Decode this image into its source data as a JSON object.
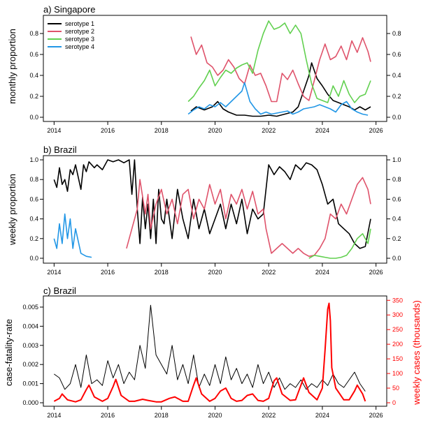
{
  "colors": {
    "s1": "#000000",
    "s2": "#DF536B",
    "s3": "#61D04F",
    "s4": "#2297E6",
    "cases": "#FF0000"
  },
  "chart_data": [
    {
      "id": "a",
      "type": "line",
      "title": "a) Singapore",
      "ylabel": "monthly proportion",
      "xlim": [
        2013.6,
        2026.4
      ],
      "ylim": [
        0,
        0.92
      ],
      "xticks": [
        2014,
        2016,
        2018,
        2020,
        2022,
        2024,
        2026
      ],
      "xtick_labels": [
        "2014",
        "2016",
        "2018",
        "2020",
        "2022",
        "2024",
        "2026"
      ],
      "yticks": [
        0,
        0.2,
        0.4,
        0.6,
        0.8
      ],
      "ytick_labels": [
        "0.0",
        "0.2",
        "0.4",
        "0.6",
        "0.8"
      ],
      "legend": [
        "serotype 1",
        "serotype 2",
        "serotype 3",
        "serotype 4"
      ],
      "series": [
        {
          "name": "serotype 1",
          "color": "#000000",
          "x": [
            2019.1,
            2019.3,
            2019.6,
            2019.9,
            2020.1,
            2020.3,
            2020.5,
            2020.8,
            2021.1,
            2021.4,
            2021.7,
            2022.0,
            2022.3,
            2022.6,
            2022.9,
            2023.1,
            2023.3,
            2023.5,
            2023.6,
            2023.8,
            2024.0,
            2024.2,
            2024.4,
            2024.6,
            2024.8,
            2025.0,
            2025.2,
            2025.4,
            2025.6,
            2025.8
          ],
          "y": [
            0.06,
            0.1,
            0.07,
            0.1,
            0.15,
            0.08,
            0.05,
            0.02,
            0.02,
            0.01,
            0.01,
            0.02,
            0.01,
            0.03,
            0.05,
            0.1,
            0.25,
            0.4,
            0.52,
            0.37,
            0.3,
            0.22,
            0.16,
            0.14,
            0.12,
            0.1,
            0.07,
            0.1,
            0.07,
            0.1
          ]
        },
        {
          "name": "serotype 2",
          "color": "#DF536B",
          "x": [
            2019.1,
            2019.3,
            2019.5,
            2019.7,
            2019.9,
            2020.1,
            2020.3,
            2020.5,
            2020.7,
            2020.9,
            2021.1,
            2021.3,
            2021.5,
            2021.7,
            2021.9,
            2022.1,
            2022.3,
            2022.5,
            2022.7,
            2022.9,
            2023.1,
            2023.3,
            2023.5,
            2023.7,
            2023.9,
            2024.1,
            2024.3,
            2024.5,
            2024.7,
            2024.9,
            2025.1,
            2025.3,
            2025.5,
            2025.7,
            2025.8
          ],
          "y": [
            0.77,
            0.6,
            0.69,
            0.52,
            0.48,
            0.4,
            0.45,
            0.55,
            0.48,
            0.37,
            0.32,
            0.5,
            0.4,
            0.42,
            0.3,
            0.15,
            0.15,
            0.42,
            0.36,
            0.45,
            0.32,
            0.2,
            0.16,
            0.35,
            0.55,
            0.7,
            0.55,
            0.58,
            0.68,
            0.55,
            0.73,
            0.62,
            0.76,
            0.63,
            0.53
          ]
        },
        {
          "name": "serotype 3",
          "color": "#61D04F",
          "x": [
            2019.0,
            2019.2,
            2019.4,
            2019.6,
            2019.8,
            2020.0,
            2020.2,
            2020.4,
            2020.6,
            2020.8,
            2021.0,
            2021.2,
            2021.4,
            2021.6,
            2021.8,
            2022.0,
            2022.2,
            2022.4,
            2022.6,
            2022.8,
            2023.0,
            2023.2,
            2023.4,
            2023.6,
            2023.8,
            2024.0,
            2024.2,
            2024.4,
            2024.6,
            2024.8,
            2025.0,
            2025.2,
            2025.4,
            2025.6,
            2025.8
          ],
          "y": [
            0.15,
            0.2,
            0.28,
            0.35,
            0.45,
            0.3,
            0.38,
            0.45,
            0.42,
            0.47,
            0.5,
            0.52,
            0.42,
            0.64,
            0.8,
            0.92,
            0.84,
            0.86,
            0.9,
            0.8,
            0.88,
            0.8,
            0.55,
            0.32,
            0.18,
            0.16,
            0.14,
            0.3,
            0.2,
            0.35,
            0.22,
            0.14,
            0.2,
            0.22,
            0.35
          ]
        },
        {
          "name": "serotype 4",
          "color": "#2297E6",
          "x": [
            2019.0,
            2019.2,
            2019.4,
            2019.6,
            2019.8,
            2020.0,
            2020.2,
            2020.4,
            2020.6,
            2020.8,
            2021.0,
            2021.1,
            2021.3,
            2021.5,
            2021.7,
            2021.9,
            2022.1,
            2022.3,
            2022.5,
            2022.7,
            2022.9,
            2023.1,
            2023.3,
            2023.5,
            2023.7,
            2023.9,
            2024.1,
            2024.3,
            2024.5,
            2024.7,
            2024.9,
            2025.1,
            2025.3,
            2025.5,
            2025.7
          ],
          "y": [
            0.03,
            0.07,
            0.1,
            0.08,
            0.12,
            0.1,
            0.14,
            0.1,
            0.15,
            0.2,
            0.25,
            0.33,
            0.15,
            0.08,
            0.03,
            0.05,
            0.03,
            0.04,
            0.05,
            0.06,
            0.03,
            0.05,
            0.08,
            0.09,
            0.1,
            0.12,
            0.1,
            0.08,
            0.05,
            0.12,
            0.15,
            0.08,
            0.05,
            0.03,
            0.02
          ]
        }
      ]
    },
    {
      "id": "b",
      "type": "line",
      "title": "b) Brazil",
      "ylabel": "weekly proportion",
      "xlim": [
        2013.6,
        2026.4
      ],
      "ylim": [
        0,
        1.0
      ],
      "xticks": [
        2014,
        2016,
        2018,
        2020,
        2022,
        2024,
        2026
      ],
      "xtick_labels": [
        "2014",
        "2016",
        "2018",
        "2020",
        "2022",
        "2024",
        "2026"
      ],
      "yticks": [
        0,
        0.2,
        0.4,
        0.6,
        0.8,
        1.0
      ],
      "ytick_labels": [
        "0.0",
        "0.2",
        "0.4",
        "0.6",
        "0.8",
        "1.0"
      ],
      "series": [
        {
          "name": "serotype 1",
          "color": "#000000",
          "x": [
            2014.0,
            2014.1,
            2014.2,
            2014.3,
            2014.4,
            2014.5,
            2014.6,
            2014.7,
            2014.8,
            2015.0,
            2015.1,
            2015.2,
            2015.3,
            2015.5,
            2015.6,
            2015.8,
            2016.0,
            2016.2,
            2016.4,
            2016.6,
            2016.8,
            2016.9,
            2017.0,
            2017.1,
            2017.2,
            2017.3,
            2017.4,
            2017.5,
            2017.6,
            2017.7,
            2017.8,
            2017.9,
            2018.0,
            2018.1,
            2018.2,
            2018.4,
            2018.6,
            2018.8,
            2019.0,
            2019.2,
            2019.4,
            2019.6,
            2019.8,
            2020.0,
            2020.2,
            2020.4,
            2020.6,
            2020.8,
            2021.0,
            2021.2,
            2021.4,
            2021.6,
            2021.8,
            2022.0,
            2022.1,
            2022.2,
            2022.4,
            2022.6,
            2022.8,
            2023.0,
            2023.2,
            2023.4,
            2023.6,
            2023.8,
            2024.0,
            2024.2,
            2024.4,
            2024.6,
            2024.8,
            2025.0,
            2025.2,
            2025.4,
            2025.6,
            2025.8
          ],
          "y": [
            0.8,
            0.72,
            0.92,
            0.75,
            0.8,
            0.68,
            0.9,
            0.85,
            0.95,
            0.7,
            0.95,
            0.88,
            0.98,
            0.92,
            0.95,
            0.9,
            1.0,
            0.98,
            1.0,
            0.97,
            1.0,
            0.65,
            1.0,
            0.5,
            0.15,
            0.62,
            0.3,
            0.55,
            0.2,
            0.6,
            0.15,
            0.7,
            0.4,
            0.35,
            0.6,
            0.2,
            0.7,
            0.4,
            0.2,
            0.6,
            0.3,
            0.5,
            0.25,
            0.4,
            0.55,
            0.3,
            0.55,
            0.35,
            0.6,
            0.25,
            0.5,
            0.4,
            0.45,
            0.95,
            0.9,
            0.85,
            0.93,
            0.88,
            0.8,
            0.95,
            0.9,
            0.97,
            0.95,
            0.9,
            0.75,
            0.55,
            0.6,
            0.35,
            0.3,
            0.25,
            0.15,
            0.1,
            0.12,
            0.4
          ]
        },
        {
          "name": "serotype 2",
          "color": "#DF536B",
          "x": [
            2016.7,
            2016.9,
            2017.1,
            2017.2,
            2017.4,
            2017.5,
            2017.6,
            2017.8,
            2018.0,
            2018.2,
            2018.4,
            2018.6,
            2018.8,
            2019.0,
            2019.2,
            2019.4,
            2019.6,
            2019.8,
            2020.0,
            2020.2,
            2020.4,
            2020.6,
            2020.8,
            2021.0,
            2021.2,
            2021.4,
            2021.6,
            2021.8,
            2021.9,
            2022.1,
            2022.3,
            2022.5,
            2022.7,
            2022.9,
            2023.1,
            2023.3,
            2023.5,
            2023.7,
            2023.9,
            2024.1,
            2024.3,
            2024.5,
            2024.7,
            2024.9,
            2025.1,
            2025.3,
            2025.5,
            2025.7,
            2025.8
          ],
          "y": [
            0.1,
            0.3,
            0.5,
            0.8,
            0.45,
            0.65,
            0.3,
            0.55,
            0.7,
            0.45,
            0.6,
            0.35,
            0.65,
            0.7,
            0.4,
            0.6,
            0.5,
            0.75,
            0.55,
            0.7,
            0.4,
            0.65,
            0.55,
            0.7,
            0.5,
            0.68,
            0.45,
            0.5,
            0.3,
            0.05,
            0.1,
            0.15,
            0.1,
            0.05,
            0.1,
            0.05,
            0.02,
            0.03,
            0.1,
            0.2,
            0.45,
            0.4,
            0.55,
            0.45,
            0.6,
            0.75,
            0.82,
            0.7,
            0.55
          ]
        },
        {
          "name": "serotype 3",
          "color": "#61D04F",
          "x": [
            2023.5,
            2023.7,
            2023.9,
            2024.1,
            2024.3,
            2024.5,
            2024.7,
            2024.9,
            2025.1,
            2025.3,
            2025.5,
            2025.7,
            2025.8
          ],
          "y": [
            0.0,
            0.03,
            0.02,
            0.01,
            0.0,
            0.0,
            0.01,
            0.03,
            0.1,
            0.2,
            0.25,
            0.15,
            0.3
          ]
        },
        {
          "name": "serotype 4",
          "color": "#2297E6",
          "x": [
            2014.0,
            2014.1,
            2014.2,
            2014.3,
            2014.4,
            2014.5,
            2014.6,
            2014.7,
            2014.8,
            2015.0,
            2015.2,
            2015.4
          ],
          "y": [
            0.2,
            0.1,
            0.35,
            0.15,
            0.45,
            0.2,
            0.4,
            0.1,
            0.3,
            0.05,
            0.02,
            0.01
          ]
        }
      ]
    },
    {
      "id": "c",
      "type": "line",
      "title": "c) Brazil",
      "ylabel": "case-fatality-rate",
      "y2label": "weekly cases (thousands)",
      "xlim": [
        2013.6,
        2026.4
      ],
      "ylim": [
        0,
        0.0054
      ],
      "y2lim": [
        0,
        353
      ],
      "xticks": [
        2014,
        2016,
        2018,
        2020,
        2022,
        2024,
        2026
      ],
      "xtick_labels": [
        "2014",
        "2016",
        "2018",
        "2020",
        "2022",
        "2024",
        "2026"
      ],
      "yticks": [
        0,
        0.001,
        0.002,
        0.003,
        0.004,
        0.005
      ],
      "ytick_labels": [
        "0.000",
        "0.001",
        "0.002",
        "0.003",
        "0.004",
        "0.005"
      ],
      "y2ticks": [
        0,
        50,
        100,
        150,
        200,
        250,
        300,
        350
      ],
      "y2tick_labels": [
        "0",
        "50",
        "100",
        "150",
        "200",
        "250",
        "300",
        "350"
      ],
      "series": [
        {
          "name": "case-fatality-rate",
          "color": "#000000",
          "axis": "left",
          "x": [
            2014.0,
            2014.2,
            2014.4,
            2014.6,
            2014.8,
            2015.0,
            2015.2,
            2015.4,
            2015.6,
            2015.8,
            2016.0,
            2016.2,
            2016.4,
            2016.6,
            2016.8,
            2017.0,
            2017.2,
            2017.4,
            2017.6,
            2017.8,
            2018.0,
            2018.2,
            2018.4,
            2018.6,
            2018.8,
            2019.0,
            2019.2,
            2019.4,
            2019.6,
            2019.8,
            2020.0,
            2020.2,
            2020.4,
            2020.6,
            2020.8,
            2021.0,
            2021.2,
            2021.4,
            2021.6,
            2021.8,
            2022.0,
            2022.2,
            2022.4,
            2022.6,
            2022.8,
            2023.0,
            2023.2,
            2023.4,
            2023.6,
            2023.8,
            2024.0,
            2024.2,
            2024.4,
            2024.6,
            2024.8,
            2025.0,
            2025.2,
            2025.4,
            2025.6
          ],
          "y": [
            0.0015,
            0.0013,
            0.0007,
            0.001,
            0.002,
            0.0008,
            0.0025,
            0.001,
            0.0012,
            0.0009,
            0.0022,
            0.0013,
            0.002,
            0.001,
            0.0016,
            0.0012,
            0.003,
            0.0018,
            0.0051,
            0.0025,
            0.002,
            0.0015,
            0.003,
            0.0012,
            0.002,
            0.001,
            0.0025,
            0.0008,
            0.0015,
            0.0009,
            0.002,
            0.001,
            0.0024,
            0.0012,
            0.0018,
            0.001,
            0.0015,
            0.0008,
            0.002,
            0.001,
            0.0016,
            0.0008,
            0.0013,
            0.0007,
            0.001,
            0.0008,
            0.0012,
            0.0007,
            0.001,
            0.0008,
            0.0012,
            0.0009,
            0.0015,
            0.001,
            0.0008,
            0.0012,
            0.0016,
            0.001,
            0.0006
          ]
        },
        {
          "name": "weekly cases (thousands)",
          "color": "#FF0000",
          "axis": "right",
          "x": [
            2014.0,
            2014.2,
            2014.3,
            2014.5,
            2014.8,
            2015.0,
            2015.2,
            2015.3,
            2015.5,
            2015.8,
            2016.0,
            2016.2,
            2016.3,
            2016.5,
            2016.8,
            2017.0,
            2017.3,
            2017.5,
            2017.8,
            2018.0,
            2018.3,
            2018.5,
            2018.8,
            2019.0,
            2019.2,
            2019.3,
            2019.5,
            2019.8,
            2020.0,
            2020.2,
            2020.4,
            2020.6,
            2020.8,
            2021.0,
            2021.2,
            2021.4,
            2021.6,
            2021.8,
            2022.0,
            2022.2,
            2022.3,
            2022.5,
            2022.8,
            2023.0,
            2023.2,
            2023.3,
            2023.5,
            2023.8,
            2024.0,
            2024.1,
            2024.2,
            2024.25,
            2024.3,
            2024.35,
            2024.5,
            2024.8,
            2025.0,
            2025.2,
            2025.3,
            2025.5,
            2025.6
          ],
          "y": [
            5,
            15,
            30,
            10,
            3,
            10,
            45,
            60,
            20,
            5,
            15,
            55,
            80,
            25,
            5,
            5,
            12,
            8,
            3,
            3,
            15,
            20,
            5,
            5,
            60,
            85,
            30,
            5,
            15,
            40,
            50,
            15,
            5,
            8,
            25,
            30,
            8,
            5,
            15,
            75,
            85,
            30,
            8,
            10,
            60,
            85,
            35,
            10,
            50,
            180,
            320,
            340,
            280,
            120,
            50,
            10,
            10,
            40,
            60,
            30,
            5
          ]
        }
      ]
    }
  ]
}
